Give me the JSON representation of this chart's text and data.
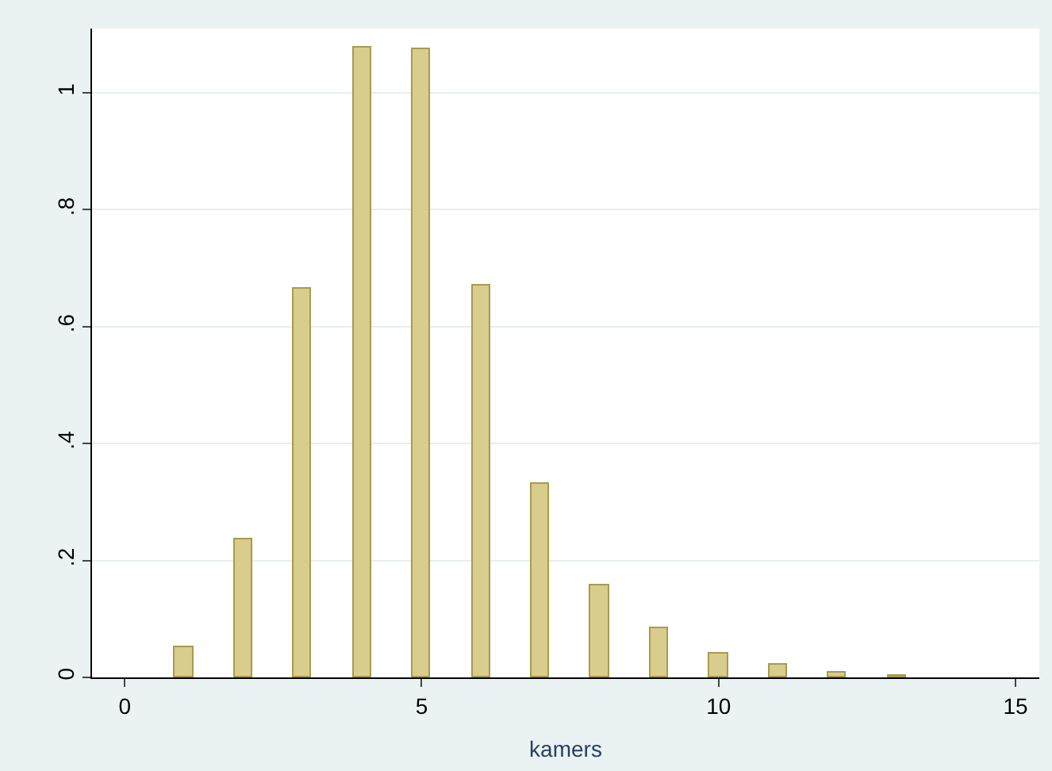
{
  "chart_data": {
    "type": "bar",
    "xlabel": "kamers",
    "x": [
      1,
      2,
      3,
      4,
      5,
      6,
      7,
      8,
      9,
      10,
      11,
      12,
      13
    ],
    "values": [
      0.052,
      0.235,
      0.666,
      1.077,
      1.075,
      0.671,
      0.331,
      0.157,
      0.083,
      0.041,
      0.022,
      0.008,
      0.003
    ],
    "color": "#d8cd8c",
    "xlim": [
      -0.55,
      15.4
    ],
    "xticks": [
      0,
      5,
      10,
      15
    ],
    "ylim": [
      0,
      1.11
    ],
    "yticks": [
      0,
      {
        "value": 0.2,
        "label": ".2"
      },
      {
        "value": 0.4,
        "label": ".4"
      },
      {
        "value": 0.6,
        "label": ".6"
      },
      {
        "value": 0.8,
        "label": ".8"
      },
      1
    ],
    "grid": "y",
    "legend": false
  }
}
